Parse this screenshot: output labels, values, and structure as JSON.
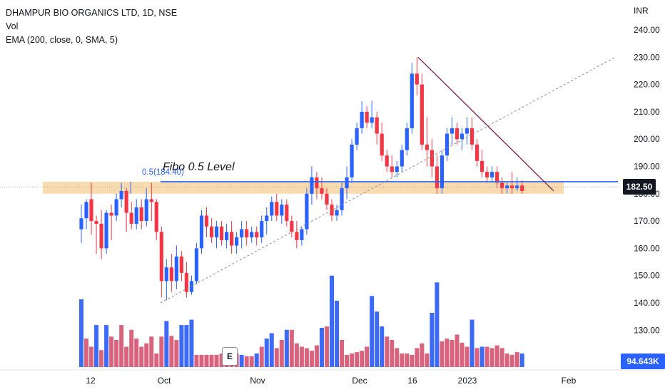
{
  "header": {
    "title": "DHAMPUR BIO ORGANICS LTD, 1D, NSE",
    "vol": "Vol",
    "ema": "EMA (200, close, 0, SMA, 5)"
  },
  "currency": "INR",
  "price_tag": "182.50",
  "volume_tag": "94.643K",
  "event_badge": "E",
  "annotations": {
    "fibo_text": "Fibo 0.5 Level",
    "fibo_value": "0.5(184.40)"
  },
  "colors": {
    "up": "#2962ff",
    "down": "#f23645",
    "vol_up": "#3d6af5",
    "vol_down": "#d9637d",
    "zone": "#f5cf93",
    "fibo_line": "#2962ff",
    "trendline": "#7b1f4f",
    "price_tag_bg": "#131722",
    "volume_tag_bg": "#2962ff"
  },
  "chart_data": {
    "type": "candlestick",
    "y_axis": {
      "unit": "INR",
      "ticks": [
        "240.00",
        "230.00",
        "220.00",
        "210.00",
        "200.00",
        "190.00",
        "180.00",
        "170.00",
        "160.00",
        "150.00",
        "140.00",
        "130.00"
      ]
    },
    "x_axis": {
      "ticks": [
        "12",
        "Oct",
        "Nov",
        "Dec",
        "16",
        "2023",
        "Feb"
      ]
    },
    "current_price": 182.5,
    "fibo_level": 184.4,
    "zone": [
      180.0,
      184.4
    ],
    "candles": [
      [
        167,
        176,
        162,
        171
      ],
      [
        171,
        178,
        167,
        177
      ],
      [
        178,
        184,
        165,
        170
      ],
      [
        170,
        172,
        158,
        169
      ],
      [
        169,
        174,
        156,
        160
      ],
      [
        160,
        174,
        158,
        173
      ],
      [
        173,
        176,
        163,
        172
      ],
      [
        172,
        180,
        170,
        178
      ],
      [
        178,
        184,
        175,
        181
      ],
      [
        181,
        182,
        166,
        173
      ],
      [
        173,
        177,
        167,
        169
      ],
      [
        169,
        178,
        167,
        175
      ],
      [
        175,
        178,
        167,
        170
      ],
      [
        170,
        182,
        168,
        178
      ],
      [
        178,
        184,
        170,
        177
      ],
      [
        177,
        178,
        163,
        166
      ],
      [
        166,
        168,
        142,
        148
      ],
      [
        148,
        156,
        141,
        153
      ],
      [
        153,
        158,
        144,
        148
      ],
      [
        148,
        161,
        145,
        157
      ],
      [
        157,
        159,
        148,
        151
      ],
      [
        151,
        155,
        142,
        144
      ],
      [
        144,
        150,
        143,
        148
      ],
      [
        148,
        162,
        147,
        160
      ],
      [
        160,
        174,
        158,
        172
      ],
      [
        172,
        175,
        164,
        168
      ],
      [
        168,
        171,
        162,
        164
      ],
      [
        164,
        170,
        160,
        168
      ],
      [
        168,
        170,
        161,
        163
      ],
      [
        163,
        169,
        160,
        166
      ],
      [
        166,
        170,
        158,
        161
      ],
      [
        161,
        166,
        158,
        164
      ],
      [
        164,
        170,
        160,
        167
      ],
      [
        167,
        170,
        161,
        164
      ],
      [
        164,
        168,
        162,
        166
      ],
      [
        166,
        168,
        161,
        164
      ],
      [
        164,
        172,
        162,
        170
      ],
      [
        170,
        175,
        165,
        172
      ],
      [
        172,
        179,
        170,
        177
      ],
      [
        177,
        180,
        170,
        172
      ],
      [
        172,
        178,
        169,
        176
      ],
      [
        176,
        178,
        168,
        170
      ],
      [
        170,
        172,
        164,
        166
      ],
      [
        166,
        170,
        160,
        163
      ],
      [
        163,
        168,
        161,
        167
      ],
      [
        167,
        182,
        165,
        180
      ],
      [
        180,
        190,
        176,
        186
      ],
      [
        186,
        188,
        178,
        182
      ],
      [
        182,
        186,
        178,
        180
      ],
      [
        180,
        182,
        174,
        176
      ],
      [
        176,
        178,
        170,
        172
      ],
      [
        172,
        176,
        170,
        174
      ],
      [
        174,
        184,
        172,
        182
      ],
      [
        182,
        190,
        178,
        186
      ],
      [
        186,
        200,
        184,
        198
      ],
      [
        198,
        206,
        196,
        204
      ],
      [
        204,
        214,
        202,
        210
      ],
      [
        210,
        212,
        204,
        206
      ],
      [
        206,
        214,
        204,
        208
      ],
      [
        208,
        210,
        198,
        202
      ],
      [
        202,
        206,
        192,
        194
      ],
      [
        194,
        196,
        188,
        190
      ],
      [
        190,
        194,
        186,
        188
      ],
      [
        188,
        192,
        186,
        190
      ],
      [
        190,
        198,
        188,
        196
      ],
      [
        196,
        206,
        194,
        204
      ],
      [
        204,
        228,
        202,
        224
      ],
      [
        224,
        230,
        216,
        220
      ],
      [
        220,
        224,
        196,
        198
      ],
      [
        198,
        208,
        190,
        196
      ],
      [
        196,
        200,
        186,
        190
      ],
      [
        190,
        194,
        180,
        182
      ],
      [
        182,
        196,
        180,
        194
      ],
      [
        194,
        204,
        192,
        202
      ],
      [
        202,
        208,
        198,
        204
      ],
      [
        204,
        206,
        198,
        200
      ],
      [
        200,
        204,
        196,
        202
      ],
      [
        202,
        208,
        198,
        204
      ],
      [
        204,
        208,
        196,
        198
      ],
      [
        198,
        200,
        190,
        192
      ],
      [
        192,
        196,
        186,
        188
      ],
      [
        188,
        190,
        184,
        186
      ],
      [
        186,
        190,
        184,
        188
      ],
      [
        188,
        190,
        182,
        184
      ],
      [
        184,
        186,
        180,
        182
      ],
      [
        182,
        184,
        180,
        183
      ],
      [
        183,
        188,
        180,
        182
      ],
      [
        182,
        186,
        181,
        183
      ],
      [
        183,
        185,
        180,
        181
      ]
    ],
    "volumes": [
      [
        1.0,
        true
      ],
      [
        0.42,
        false
      ],
      [
        0.3,
        false
      ],
      [
        0.62,
        true
      ],
      [
        0.25,
        false
      ],
      [
        0.62,
        true
      ],
      [
        0.45,
        false
      ],
      [
        0.4,
        false
      ],
      [
        0.62,
        false
      ],
      [
        0.3,
        false
      ],
      [
        0.55,
        false
      ],
      [
        0.42,
        false
      ],
      [
        0.3,
        false
      ],
      [
        0.35,
        false
      ],
      [
        0.45,
        false
      ],
      [
        0.2,
        false
      ],
      [
        0.45,
        false
      ],
      [
        0.68,
        true
      ],
      [
        0.46,
        false
      ],
      [
        0.4,
        false
      ],
      [
        0.62,
        true
      ],
      [
        0.62,
        true
      ],
      [
        0.7,
        true
      ],
      [
        0.18,
        false
      ],
      [
        0.18,
        false
      ],
      [
        0.18,
        false
      ],
      [
        0.18,
        false
      ],
      [
        0.18,
        false
      ],
      [
        0.2,
        false
      ],
      [
        0.2,
        false
      ],
      [
        0.2,
        false
      ],
      [
        0.2,
        false
      ],
      [
        0.18,
        true
      ],
      [
        0.16,
        false
      ],
      [
        0.16,
        false
      ],
      [
        0.2,
        true
      ],
      [
        0.3,
        false
      ],
      [
        0.42,
        true
      ],
      [
        0.5,
        true
      ],
      [
        0.28,
        false
      ],
      [
        0.4,
        false
      ],
      [
        0.55,
        true
      ],
      [
        0.55,
        false
      ],
      [
        0.35,
        false
      ],
      [
        0.3,
        false
      ],
      [
        0.28,
        false
      ],
      [
        0.24,
        false
      ],
      [
        0.32,
        false
      ],
      [
        0.58,
        true
      ],
      [
        0.6,
        false
      ],
      [
        1.35,
        true
      ],
      [
        0.98,
        true
      ],
      [
        0.4,
        false
      ],
      [
        0.18,
        false
      ],
      [
        0.2,
        false
      ],
      [
        0.22,
        false
      ],
      [
        0.24,
        false
      ],
      [
        0.3,
        false
      ],
      [
        1.05,
        true
      ],
      [
        0.82,
        true
      ],
      [
        0.6,
        true
      ],
      [
        0.45,
        false
      ],
      [
        0.4,
        false
      ],
      [
        0.28,
        false
      ],
      [
        0.2,
        false
      ],
      [
        0.2,
        false
      ],
      [
        0.18,
        false
      ],
      [
        0.28,
        false
      ],
      [
        0.35,
        false
      ],
      [
        0.2,
        false
      ],
      [
        0.8,
        true
      ],
      [
        1.25,
        true
      ],
      [
        0.38,
        false
      ],
      [
        0.42,
        false
      ],
      [
        0.4,
        false
      ],
      [
        0.48,
        false
      ],
      [
        0.36,
        false
      ],
      [
        0.3,
        false
      ],
      [
        0.7,
        true
      ],
      [
        0.28,
        false
      ],
      [
        0.3,
        true
      ],
      [
        0.3,
        false
      ],
      [
        0.28,
        false
      ],
      [
        0.32,
        false
      ],
      [
        0.28,
        false
      ],
      [
        0.2,
        false
      ],
      [
        0.18,
        false
      ],
      [
        0.22,
        false
      ],
      [
        0.2,
        true
      ]
    ]
  }
}
